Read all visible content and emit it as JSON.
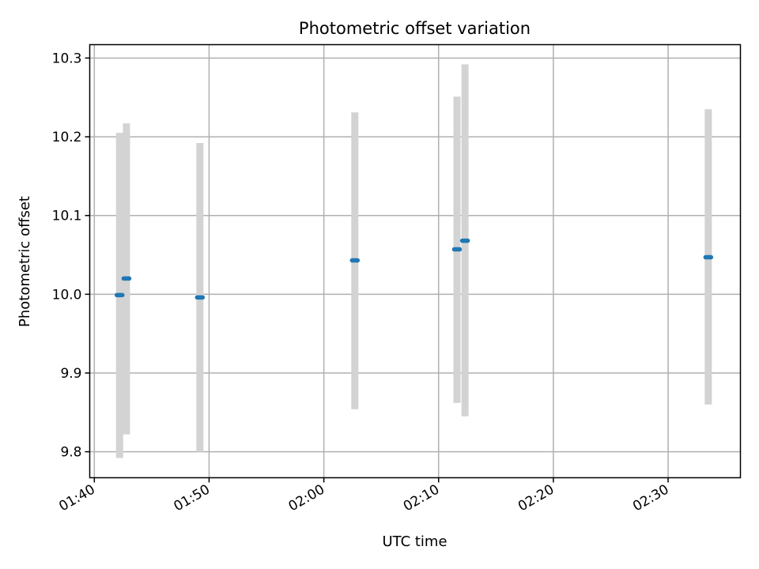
{
  "chart_data": {
    "type": "scatter",
    "title": "Photometric offset variation",
    "xlabel": "UTC time",
    "ylabel": "Photometric offset",
    "x_ticks": [
      "01:40",
      "01:50",
      "02:00",
      "02:10",
      "02:20",
      "02:30"
    ],
    "y_ticks": [
      "9.8",
      "9.9",
      "10.0",
      "10.1",
      "10.2",
      "10.3"
    ],
    "xlim": [
      "01:39.6",
      "02:36.3"
    ],
    "ylim": [
      9.767,
      10.317
    ],
    "grid": true,
    "points": [
      {
        "x": "01:42.2",
        "y": 9.999,
        "err_low": 9.792,
        "err_high": 10.205
      },
      {
        "x": "01:42.8",
        "y": 10.02,
        "err_low": 9.822,
        "err_high": 10.217
      },
      {
        "x": "01:49.2",
        "y": 9.996,
        "err_low": 9.8,
        "err_high": 10.192
      },
      {
        "x": "02:02.7",
        "y": 10.043,
        "err_low": 9.854,
        "err_high": 10.231
      },
      {
        "x": "02:11.6",
        "y": 10.057,
        "err_low": 9.862,
        "err_high": 10.251
      },
      {
        "x": "02:12.3",
        "y": 10.068,
        "err_low": 9.845,
        "err_high": 10.292
      },
      {
        "x": "02:33.5",
        "y": 10.047,
        "err_low": 9.86,
        "err_high": 10.235
      }
    ],
    "colors": {
      "marker": "#1f77b4",
      "errorbar": "#d3d3d3",
      "grid": "#b0b0b0"
    }
  }
}
